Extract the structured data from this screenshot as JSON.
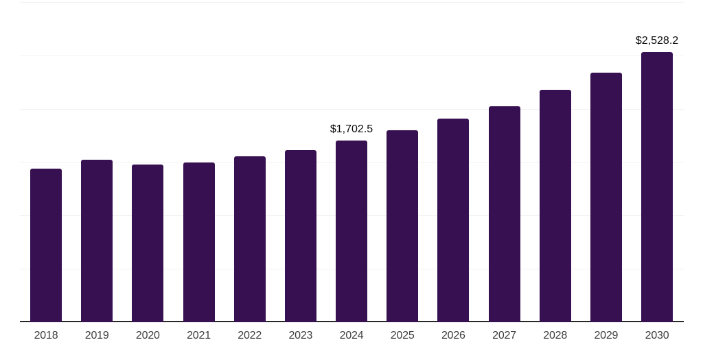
{
  "chart_data": {
    "type": "bar",
    "title": "",
    "xlabel": "",
    "ylabel": "",
    "categories": [
      "2018",
      "2019",
      "2020",
      "2021",
      "2022",
      "2023",
      "2024",
      "2025",
      "2026",
      "2027",
      "2028",
      "2029",
      "2030"
    ],
    "values": [
      1440,
      1520,
      1475,
      1500,
      1555,
      1615,
      1702.5,
      1800,
      1905,
      2025,
      2175,
      2340,
      2528.2
    ],
    "data_labels": [
      "",
      "",
      "",
      "",
      "",
      "",
      "$1,702.5",
      "",
      "",
      "",
      "",
      "",
      "$2,528.2"
    ],
    "ylim": [
      0,
      3000
    ],
    "grid_step": 500,
    "grid": true,
    "legend": false,
    "colors": {
      "bar": "#371051",
      "axis_line": "#282828",
      "gridline": "#f2f2f2",
      "data_label": "#0a0a0a",
      "tick_label": "#3d3d3d",
      "background": "#ffffff"
    }
  }
}
